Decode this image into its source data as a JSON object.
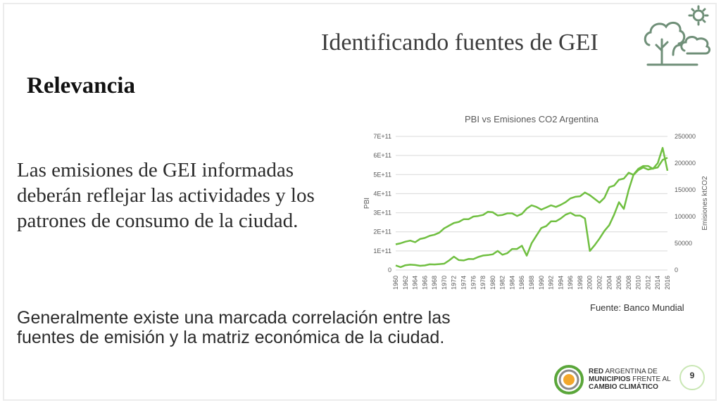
{
  "slide": {
    "title": "Identificando fuentes de GEI",
    "section": "Relevancia",
    "body": "Las emisiones de GEI informadas deberán reflejar las actividades y los patrones de consumo de la ciudad.",
    "bottom": "Generalmente existe una marcada correlación entre las fuentes de emisión y la matriz económica de la ciudad.",
    "source": "Fuente: Banco Mundial",
    "page_number": "9"
  },
  "logo": {
    "line1_bold": "RED",
    "line1_rest": " ARGENTINA DE",
    "line2_bold": "MUNICIPIOS",
    "line2_rest": " FRENTE AL",
    "line3_bold": "CAMBIO CLIMÁTICO"
  },
  "colors": {
    "series_line": "#70bf41",
    "grid": "#d9d9d9",
    "accent_orange": "#f2a72b",
    "accent_green": "#5aa63a",
    "logo_gray": "#8a8a8a"
  },
  "icons": [
    "cloud-tree-sun-icon",
    "red-argentina-logo-icon"
  ],
  "chart_data": {
    "type": "line",
    "title": "PBI vs Emisiones CO2 Argentina",
    "ylabel": "PBI",
    "y2label": "Emisiones ktCO2",
    "ylim": [
      0,
      700000000000
    ],
    "y2lim": [
      0,
      250000
    ],
    "y_ticks": [
      "0",
      "1E+11",
      "2E+11",
      "3E+11",
      "4E+11",
      "5E+11",
      "6E+11",
      "7E+11"
    ],
    "y2_ticks": [
      "0",
      "50000",
      "100000",
      "150000",
      "200000",
      "250000"
    ],
    "x_ticks": [
      "1960",
      "1962",
      "1964",
      "1966",
      "1968",
      "1970",
      "1972",
      "1974",
      "1976",
      "1978",
      "1980",
      "1982",
      "1984",
      "1986",
      "1988",
      "1990",
      "1992",
      "1994",
      "1996",
      "1998",
      "2000",
      "2002",
      "2004",
      "2006",
      "2008",
      "2010",
      "2012",
      "2014",
      "2016"
    ],
    "x": [
      1960,
      1961,
      1962,
      1963,
      1964,
      1965,
      1966,
      1967,
      1968,
      1969,
      1970,
      1971,
      1972,
      1973,
      1974,
      1975,
      1976,
      1977,
      1978,
      1979,
      1980,
      1981,
      1982,
      1983,
      1984,
      1985,
      1986,
      1987,
      1988,
      1989,
      1990,
      1991,
      1992,
      1993,
      1994,
      1995,
      1996,
      1997,
      1998,
      1999,
      2000,
      2001,
      2002,
      2003,
      2004,
      2005,
      2006,
      2007,
      2008,
      2009,
      2010,
      2011,
      2012,
      2013,
      2014,
      2015,
      2016
    ],
    "series": [
      {
        "axis": "left",
        "values": [
          24000000000,
          15000000000,
          25000000000,
          28000000000,
          26000000000,
          22000000000,
          24000000000,
          30000000000,
          29000000000,
          31000000000,
          33000000000,
          50000000000,
          70000000000,
          52000000000,
          50000000000,
          58000000000,
          57000000000,
          68000000000,
          76000000000,
          78000000000,
          82000000000,
          100000000000,
          80000000000,
          88000000000,
          110000000000,
          110000000000,
          127000000000,
          75000000000,
          140000000000,
          180000000000,
          220000000000,
          230000000000,
          255000000000,
          255000000000,
          270000000000,
          290000000000,
          300000000000,
          285000000000,
          285000000000,
          270000000000,
          100000000000,
          130000000000,
          165000000000,
          205000000000,
          235000000000,
          290000000000,
          355000000000,
          320000000000,
          420000000000,
          500000000000,
          530000000000,
          545000000000,
          545000000000,
          530000000000,
          560000000000,
          640000000000,
          520000000000
        ]
      },
      {
        "axis": "right",
        "values": [
          48000,
          50000,
          53000,
          55000,
          52000,
          58000,
          60000,
          64000,
          66000,
          70000,
          78000,
          83000,
          88000,
          90000,
          95000,
          95000,
          100000,
          101000,
          103000,
          109000,
          108000,
          102000,
          103000,
          106000,
          106000,
          101000,
          105000,
          115000,
          121000,
          118000,
          113000,
          117000,
          121000,
          118000,
          122000,
          127000,
          134000,
          137000,
          138000,
          145000,
          140000,
          133000,
          126000,
          135000,
          155000,
          158000,
          169000,
          171000,
          182000,
          178000,
          187000,
          192000,
          188000,
          190000,
          192000,
          206000,
          210000
        ]
      }
    ]
  }
}
